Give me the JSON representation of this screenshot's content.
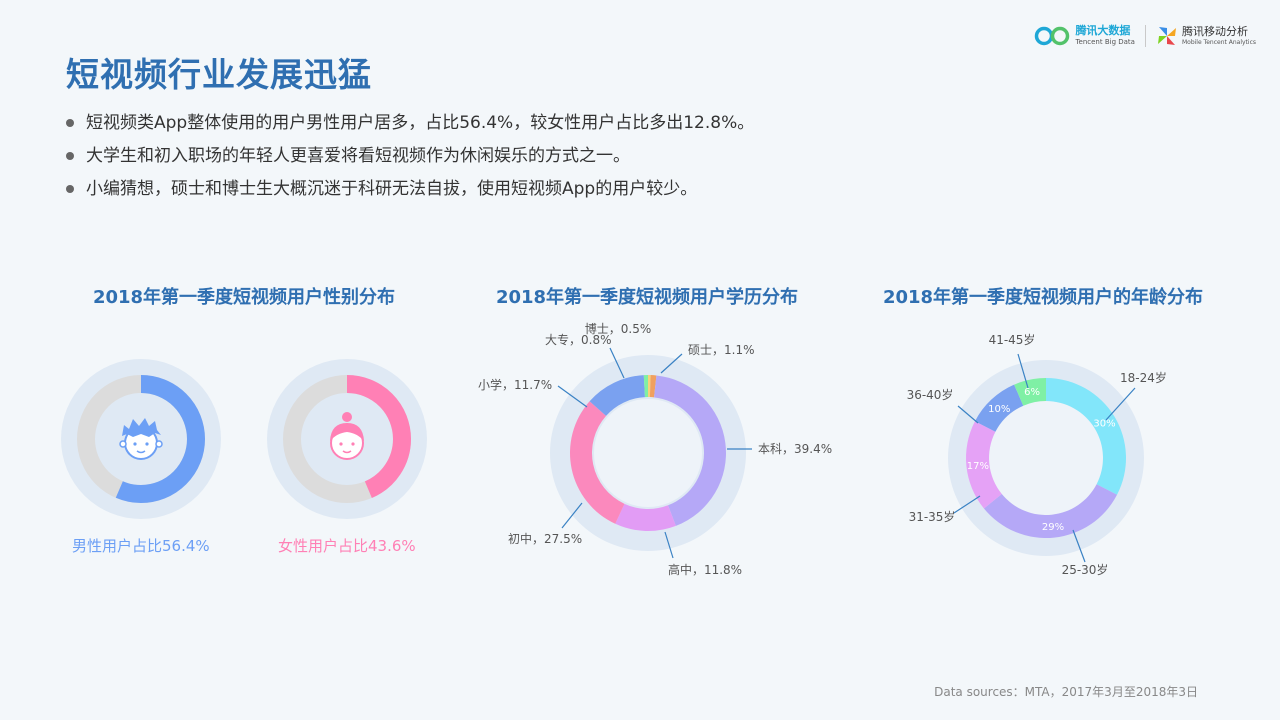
{
  "page": {
    "title": "短视频行业发展迅猛",
    "bullets": [
      "短视频类App整体使用的用户男性用户居多，占比56.4%，较女性用户占比多出12.8%。",
      "大学生和初入职场的年轻人更喜爱将看短视频作为休闲娱乐的方式之一。",
      "小编猜想，硕士和博士生大概沉迷于科研无法自拔，使用短视频App的用户较少。"
    ],
    "source": "Data sources：MTA，2017年3月至2018年3日"
  },
  "logos": {
    "tbd_name": "腾讯大数据",
    "tbd_sub": "Tencent Big Data",
    "mta_name": "腾讯移动分析",
    "mta_sub": "Mobile Tencent Analytics"
  },
  "colors": {
    "title": "#2f6fb1",
    "male": "#6c9ff5",
    "female": "#ff80b5",
    "ring_bg": "#dcdcdc",
    "halo": "#dfe9f4"
  },
  "chart_data": [
    {
      "type": "pie",
      "title": "2018年第一季度短视频用户性别分布",
      "series": [
        {
          "name": "男性用户",
          "label": "男性用户占比56.4%",
          "value": 56.4
        },
        {
          "name": "女性用户",
          "label": "女性用户占比43.6%",
          "value": 43.6
        }
      ]
    },
    {
      "type": "pie",
      "title": "2018年第一季度短视频用户学历分布",
      "categories": [
        "博士",
        "硕士",
        "本科",
        "高中",
        "初中",
        "小学",
        "大专"
      ],
      "values": [
        0.5,
        1.1,
        39.4,
        11.8,
        27.5,
        11.7,
        0.8
      ],
      "labels": [
        "博士，0.5%",
        "硕士，1.1%",
        "本科，39.4%",
        "高中，11.8%",
        "初中，27.5%",
        "小学，11.7%",
        "大专，0.8%"
      ],
      "colors": [
        "#f7d27c",
        "#f0a060",
        "#b5a8f7",
        "#e29cf5",
        "#fb89bd",
        "#7aa1f0",
        "#7ff0a5"
      ]
    },
    {
      "type": "pie",
      "title": "2018年第一季度短视频用户的年龄分布",
      "categories": [
        "18-24岁",
        "25-30岁",
        "31-35岁",
        "36-40岁",
        "41-45岁"
      ],
      "values": [
        30,
        29,
        17,
        10,
        6
      ],
      "labels": [
        "30%",
        "29%",
        "17%",
        "10%",
        "6%"
      ],
      "colors": [
        "#82e6fa",
        "#b5a8f7",
        "#e5a2f6",
        "#7aa1f0",
        "#7ff0a5"
      ]
    }
  ]
}
